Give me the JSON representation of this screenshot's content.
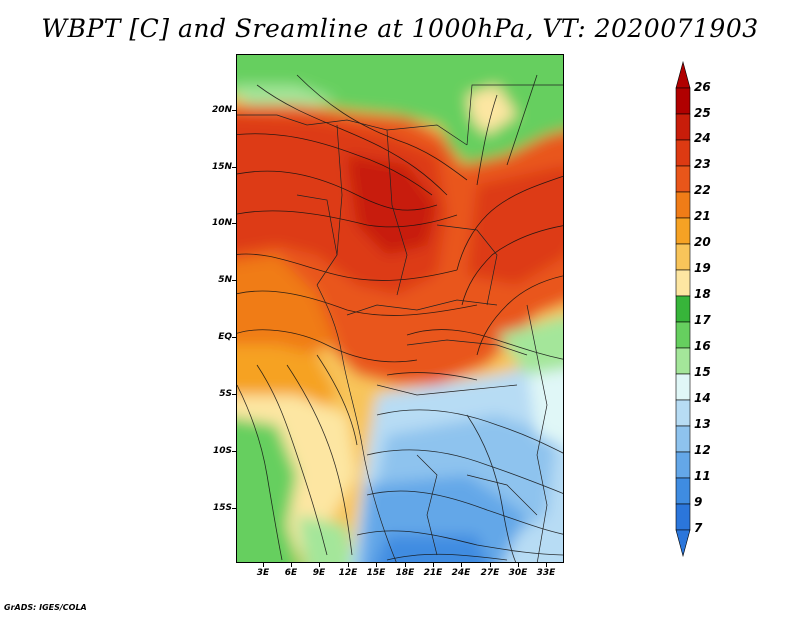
{
  "title": "WBPT [C] and Sreamline at 1000hPa, VT: 2020071903",
  "credit": "GrADS: IGES/COLA",
  "map": {
    "lat_labels": [
      "20N",
      "15N",
      "10N",
      "5N",
      "EQ",
      "5S",
      "10S",
      "15S"
    ],
    "lon_labels": [
      "3E",
      "6E",
      "9E",
      "12E",
      "15E",
      "18E",
      "21E",
      "24E",
      "27E",
      "30E",
      "33E"
    ]
  },
  "colorbar": {
    "labels": [
      "26",
      "25",
      "24",
      "23",
      "22",
      "21",
      "20",
      "19",
      "18",
      "17",
      "16",
      "15",
      "14",
      "13",
      "12",
      "11",
      "9",
      "7"
    ],
    "colors": [
      "#b00000",
      "#c81d0a",
      "#dd3a12",
      "#e9561a",
      "#f07c17",
      "#f6a224",
      "#f8c45a",
      "#fde6a2",
      "#37b53a",
      "#66cf5f",
      "#a4e69a",
      "#e0f7f7",
      "#b7dcf4",
      "#8ec3ee",
      "#64a7e8",
      "#3f8ce1",
      "#2b76db"
    ]
  }
}
